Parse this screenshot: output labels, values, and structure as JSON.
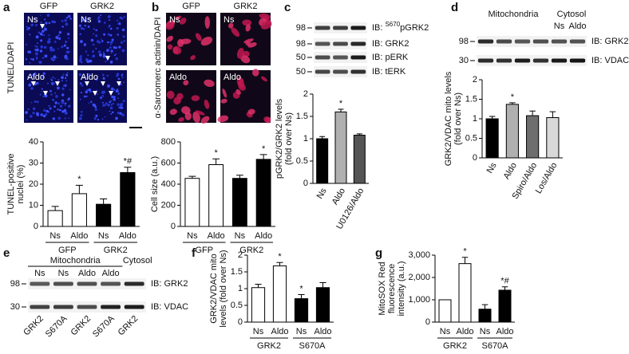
{
  "panel_letters": [
    "a",
    "b",
    "c",
    "d",
    "e",
    "f",
    "g"
  ],
  "micrographs": [
    {
      "columns": [
        "GFP",
        "GRK2"
      ],
      "rows": [
        "Ns",
        "Aldo"
      ],
      "stain": "TUNEL/DAPI"
    },
    {
      "columns": [
        "GFP",
        "GRK2"
      ],
      "rows": [
        "Ns",
        "Aldo"
      ],
      "stain": "α-Sarcomerc actinin/DAPI"
    }
  ],
  "blots": [
    {
      "mw": [
        98,
        98,
        50,
        50
      ],
      "probes": [
        {
          "prefix": "IB:",
          "sup": "S670",
          "text": "pGRK2"
        },
        "IB: GRK2",
        "IB: pERK",
        "IB: tERK"
      ]
    },
    {
      "fractions": [
        "Mitochondria",
        "Cytosol"
      ],
      "cytosol_lanes": [
        "Ns",
        "Aldo"
      ],
      "mw": [
        98,
        30
      ],
      "probes": [
        "IB: GRK2",
        "IB: VDAC"
      ]
    },
    {
      "fractions": [
        "Mitochondria",
        "Cytosol"
      ],
      "treatments": [
        "Ns",
        "Ns",
        "Aldo",
        "Aldo"
      ],
      "lanes": [
        "GRK2",
        "S670A",
        "GRK2",
        "S670A",
        "GRK2"
      ],
      "mw": [
        98,
        30
      ],
      "probes": [
        "IB: GRK2",
        "IB: VDAC"
      ]
    }
  ],
  "chart_data": [
    {
      "type": "bar",
      "ylabel": [
        "TUNEL-positive",
        "nuclei (%)"
      ],
      "ylim": [
        0,
        40
      ],
      "yticks": [
        0,
        10,
        20,
        30,
        40
      ],
      "categories": [
        "Ns",
        "Aldo",
        "Ns",
        "Aldo"
      ],
      "groups": [
        "GFP",
        "GRK2"
      ],
      "values": [
        7.5,
        15.5,
        10.5,
        25.5
      ],
      "errors": [
        2,
        4,
        2.5,
        2.5
      ],
      "colors": [
        "#ffffff",
        "#ffffff",
        "#000000",
        "#000000"
      ],
      "annotations": [
        null,
        "*",
        null,
        "*#"
      ]
    },
    {
      "type": "bar",
      "ylabel": [
        "Cell size (a.u.)"
      ],
      "ylim": [
        0,
        800
      ],
      "yticks": [
        0,
        200,
        400,
        600,
        800
      ],
      "categories": [
        "Ns",
        "Aldo",
        "Ns",
        "Aldo"
      ],
      "groups": [
        "GFP",
        "GRK2"
      ],
      "values": [
        455,
        585,
        455,
        635
      ],
      "errors": [
        20,
        55,
        30,
        45
      ],
      "colors": [
        "#ffffff",
        "#ffffff",
        "#000000",
        "#000000"
      ],
      "annotations": [
        null,
        "*",
        null,
        "*"
      ]
    },
    {
      "type": "bar",
      "ylabel": [
        "pGRK2/GRK2 levels",
        "(fold over Ns)"
      ],
      "ylim": [
        0,
        2
      ],
      "yticks": [
        0,
        0.5,
        1,
        1.5,
        2
      ],
      "categories": [
        "Ns",
        "Aldo",
        "U0126/Aldo"
      ],
      "rotate_category_labels": true,
      "values": [
        1.0,
        1.6,
        1.08
      ],
      "errors": [
        0.05,
        0.06,
        0.03
      ],
      "colors": [
        "#000000",
        "#b0b0b0",
        "#555555"
      ],
      "annotations": [
        null,
        "*",
        null
      ]
    },
    {
      "type": "bar",
      "ylabel": [
        "GRK2/VDAC mito levels",
        "(fold over Ns)"
      ],
      "ylim": [
        0,
        2
      ],
      "yticks": [
        0,
        0.5,
        1,
        1.5,
        2
      ],
      "categories": [
        "Ns",
        "Aldo",
        "Spiro/Aldo",
        "Los/Aldo"
      ],
      "rotate_category_labels": true,
      "values": [
        1.0,
        1.37,
        1.08,
        1.03
      ],
      "errors": [
        0.06,
        0.04,
        0.12,
        0.15
      ],
      "colors": [
        "#000000",
        "#b0b0b0",
        "#6e6e6e",
        "#d8d8d8"
      ],
      "annotations": [
        null,
        "*",
        null,
        null
      ]
    },
    {
      "type": "bar",
      "ylabel": [
        "GRK2/VDAC mito",
        "levels (fold over Ns)"
      ],
      "ylim": [
        0,
        2
      ],
      "yticks": [
        0,
        0.5,
        1,
        1.5,
        2
      ],
      "categories": [
        "Ns",
        "Aldo",
        "Ns",
        "Aldo"
      ],
      "groups": [
        "GRK2",
        "S670A"
      ],
      "values": [
        1.03,
        1.68,
        0.7,
        1.03
      ],
      "errors": [
        0.1,
        0.1,
        0.12,
        0.15
      ],
      "colors": [
        "#ffffff",
        "#ffffff",
        "#000000",
        "#000000"
      ],
      "annotations": [
        null,
        "*",
        "*",
        null
      ]
    },
    {
      "type": "bar",
      "ylabel": [
        "MitoSOX Red",
        "fluorescence",
        "intensity (a.u.)"
      ],
      "ylim": [
        0,
        3000
      ],
      "yticks": [
        0,
        {
          "value": 1000,
          "label": "1,000"
        },
        {
          "value": 2000,
          "label": "2,000"
        },
        {
          "value": 3000,
          "label": "3,000"
        }
      ],
      "categories": [
        "Ns",
        "Aldo",
        "Ns",
        "Aldo"
      ],
      "groups": [
        "GRK2",
        "S670A"
      ],
      "values": [
        1000,
        2620,
        580,
        1430
      ],
      "errors": [
        0,
        280,
        200,
        150
      ],
      "colors": [
        "#ffffff",
        "#ffffff",
        "#000000",
        "#000000"
      ],
      "annotations": [
        null,
        "*",
        null,
        "*#"
      ]
    }
  ]
}
